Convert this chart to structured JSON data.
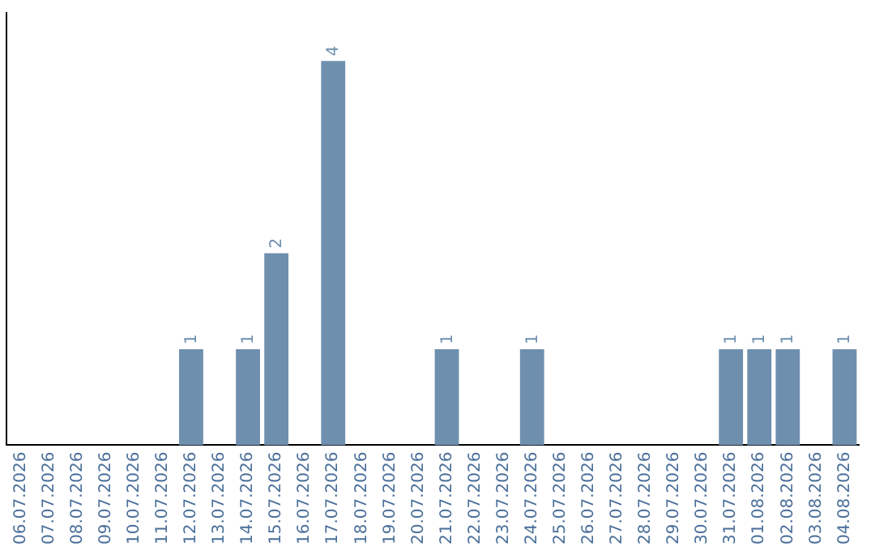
{
  "chart_data": {
    "type": "bar",
    "categories": [
      "06.07.2026",
      "07.07.2026",
      "08.07.2026",
      "09.07.2026",
      "10.07.2026",
      "11.07.2026",
      "12.07.2026",
      "13.07.2026",
      "14.07.2026",
      "15.07.2026",
      "16.07.2026",
      "17.07.2026",
      "18.07.2026",
      "19.07.2026",
      "20.07.2026",
      "21.07.2026",
      "22.07.2026",
      "23.07.2026",
      "24.07.2026",
      "25.07.2026",
      "26.07.2026",
      "27.07.2026",
      "28.07.2026",
      "29.07.2026",
      "30.07.2026",
      "31.07.2026",
      "01.08.2026",
      "02.08.2026",
      "03.08.2026",
      "04.08.2026"
    ],
    "values": [
      0,
      0,
      0,
      0,
      0,
      0,
      1,
      0,
      1,
      2,
      0,
      4,
      0,
      0,
      0,
      1,
      0,
      0,
      1,
      0,
      0,
      0,
      0,
      0,
      0,
      1,
      1,
      1,
      0,
      1
    ],
    "value_labels": [
      null,
      null,
      null,
      null,
      null,
      null,
      "1",
      null,
      "1",
      "2",
      null,
      "4",
      null,
      null,
      null,
      "1",
      null,
      null,
      "1",
      null,
      null,
      null,
      null,
      null,
      null,
      "1",
      "1",
      "1",
      null,
      "1"
    ],
    "color": "#6f8fae",
    "tick_labels": "x",
    "grid": false,
    "legend": false
  }
}
